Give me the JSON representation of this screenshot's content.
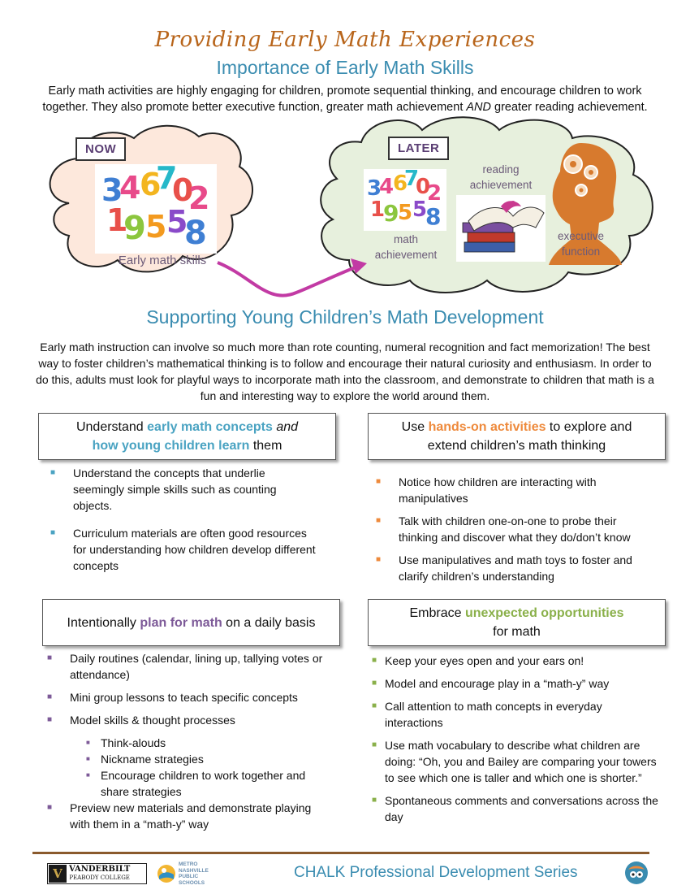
{
  "header": {
    "title": "Providing Early Math Experiences",
    "subtitle": "Importance of Early Math Skills",
    "intro_part1": "Early math activities are highly engaging for children, promote sequential thinking, and encourage children to work together. They also promote better executive function, greater math achievement ",
    "intro_and": "AND",
    "intro_part2": " greater reading achievement."
  },
  "now_cloud": {
    "tag": "NOW",
    "caption": "Early math skills"
  },
  "later_cloud": {
    "tag": "LATER",
    "math_label": "math\nachievement",
    "reading_label": "reading\nachievement",
    "exec_label": "executive\nfunction"
  },
  "support": {
    "title": "Supporting Young Children’s Math Development",
    "body": "Early math instruction can involve so much more than rote counting, numeral recognition and fact memorization! The best way to foster children’s mathematical thinking is to follow and encourage their natural curiosity and enthusiasm. In order to do this, adults must look for playful ways to incorporate math into the classroom, and demonstrate to children that math is a fun and interesting way to explore the world around them."
  },
  "box1": {
    "t1": "Understand ",
    "h1": "early math concepts",
    "t2": " and",
    "h2": "how young children learn",
    "t3": " them",
    "items": [
      "Understand the concepts that underlie seemingly simple skills such as counting objects.",
      "Curriculum materials are often good resources for understanding how children develop different concepts"
    ]
  },
  "box2": {
    "t1": "Use ",
    "h1": "hands-on activities",
    "t2": " to explore and",
    "t3": "extend children’s math thinking",
    "items": [
      "Notice how children are interacting with manipulatives",
      "Talk with children one-on-one to probe their thinking and discover what they do/don’t know",
      "Use manipulatives and math toys to foster and clarify children’s understanding"
    ]
  },
  "box3": {
    "t1": "Intentionally ",
    "h1": "plan for math",
    "t2": " on a daily basis",
    "items": [
      "Daily routines (calendar, lining up, tallying votes or attendance)",
      "Mini group lessons to teach specific concepts",
      "Model skills & thought processes"
    ],
    "subitems": [
      "Think-alouds",
      "Nickname strategies",
      "Encourage children to work together and share strategies"
    ],
    "last_item": "Preview new materials and demonstrate playing with them in a “math-y” way"
  },
  "box4": {
    "t1": "Embrace ",
    "h1": "unexpected opportunities",
    "t2": "for math",
    "items": [
      "Keep your eyes open and your ears on!",
      "Model and encourage play in a “math-y” way",
      "Call attention to math concepts in everyday interactions",
      "Use math vocabulary to describe what children are doing: “Oh, you and Bailey are comparing your towers to see which one is taller and which one is shorter.”",
      "Spontaneous comments and conversations across the day"
    ]
  },
  "footer": {
    "vanderbilt": "VANDERBILT",
    "peabody": "PEABODY COLLEGE",
    "mnps1": "METRO",
    "mnps2": "NASHVILLE",
    "mnps3": "PUBLIC",
    "mnps4": "SCHOOLS",
    "series": "CHALK Professional Development Series"
  },
  "colors": {
    "title": "#b8651b",
    "heading": "#3a8cb0",
    "blue": "#4aa3c2",
    "orange": "#ee8a3c",
    "purple": "#7d5a98",
    "green": "#8ab04a",
    "now_cloud": "#fde8dc",
    "later_cloud": "#e7f0dd"
  },
  "icons": [
    "numbers-image",
    "books-image",
    "head-gears-icon",
    "arrow-icon",
    "vanderbilt-logo",
    "mnps-logo",
    "chalk-logo"
  ]
}
